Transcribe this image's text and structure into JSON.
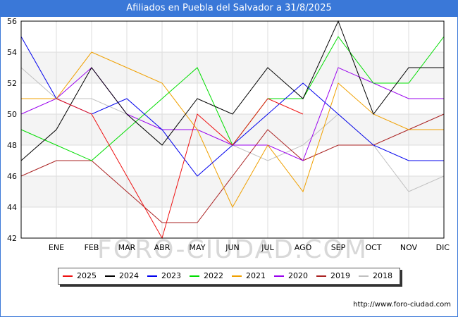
{
  "title": "Afiliados en Puebla del Salvador a 31/8/2025",
  "watermark": "FORO-CIUDAD.COM",
  "source": "http://www.foro-ciudad.com",
  "chart_data": {
    "type": "line",
    "x": [
      "",
      "ENE",
      "FEB",
      "MAR",
      "ABR",
      "MAY",
      "JUN",
      "JUL",
      "AGO",
      "SEP",
      "OCT",
      "NOV",
      "DIC"
    ],
    "ylim": [
      42,
      56
    ],
    "yticks": [
      42,
      44,
      46,
      48,
      50,
      52,
      54,
      56
    ],
    "grid": true,
    "legend_position": "bottom",
    "series": [
      {
        "name": "2025",
        "color": "#ee1111",
        "values": [
          null,
          51,
          50,
          46,
          42,
          50,
          48,
          51,
          50,
          null,
          null,
          null,
          null
        ]
      },
      {
        "name": "2024",
        "color": "#000000",
        "values": [
          47,
          49,
          53,
          50,
          48,
          51,
          50,
          53,
          51,
          56,
          50,
          53,
          53
        ]
      },
      {
        "name": "2023",
        "color": "#0000ee",
        "values": [
          55,
          51,
          50,
          51,
          49,
          46,
          48,
          50,
          52,
          50,
          48,
          47,
          47
        ]
      },
      {
        "name": "2022",
        "color": "#00dd00",
        "values": [
          49,
          48,
          47,
          49,
          51,
          53,
          48,
          51,
          51,
          55,
          52,
          52,
          55
        ]
      },
      {
        "name": "2021",
        "color": "#f0a000",
        "values": [
          51,
          51,
          54,
          53,
          52,
          49,
          44,
          48,
          45,
          52,
          50,
          49,
          49
        ]
      },
      {
        "name": "2020",
        "color": "#9900ee",
        "values": [
          50,
          51,
          53,
          50,
          49,
          49,
          48,
          48,
          47,
          53,
          52,
          51,
          51
        ]
      },
      {
        "name": "2019",
        "color": "#aa2222",
        "values": [
          46,
          47,
          47,
          45,
          43,
          43,
          46,
          49,
          47,
          48,
          48,
          49,
          50
        ]
      },
      {
        "name": "2018",
        "color": "#c0c0c0",
        "values": [
          53,
          51,
          51,
          50,
          48,
          48,
          48,
          47,
          48,
          50,
          48,
          45,
          46
        ]
      }
    ]
  }
}
